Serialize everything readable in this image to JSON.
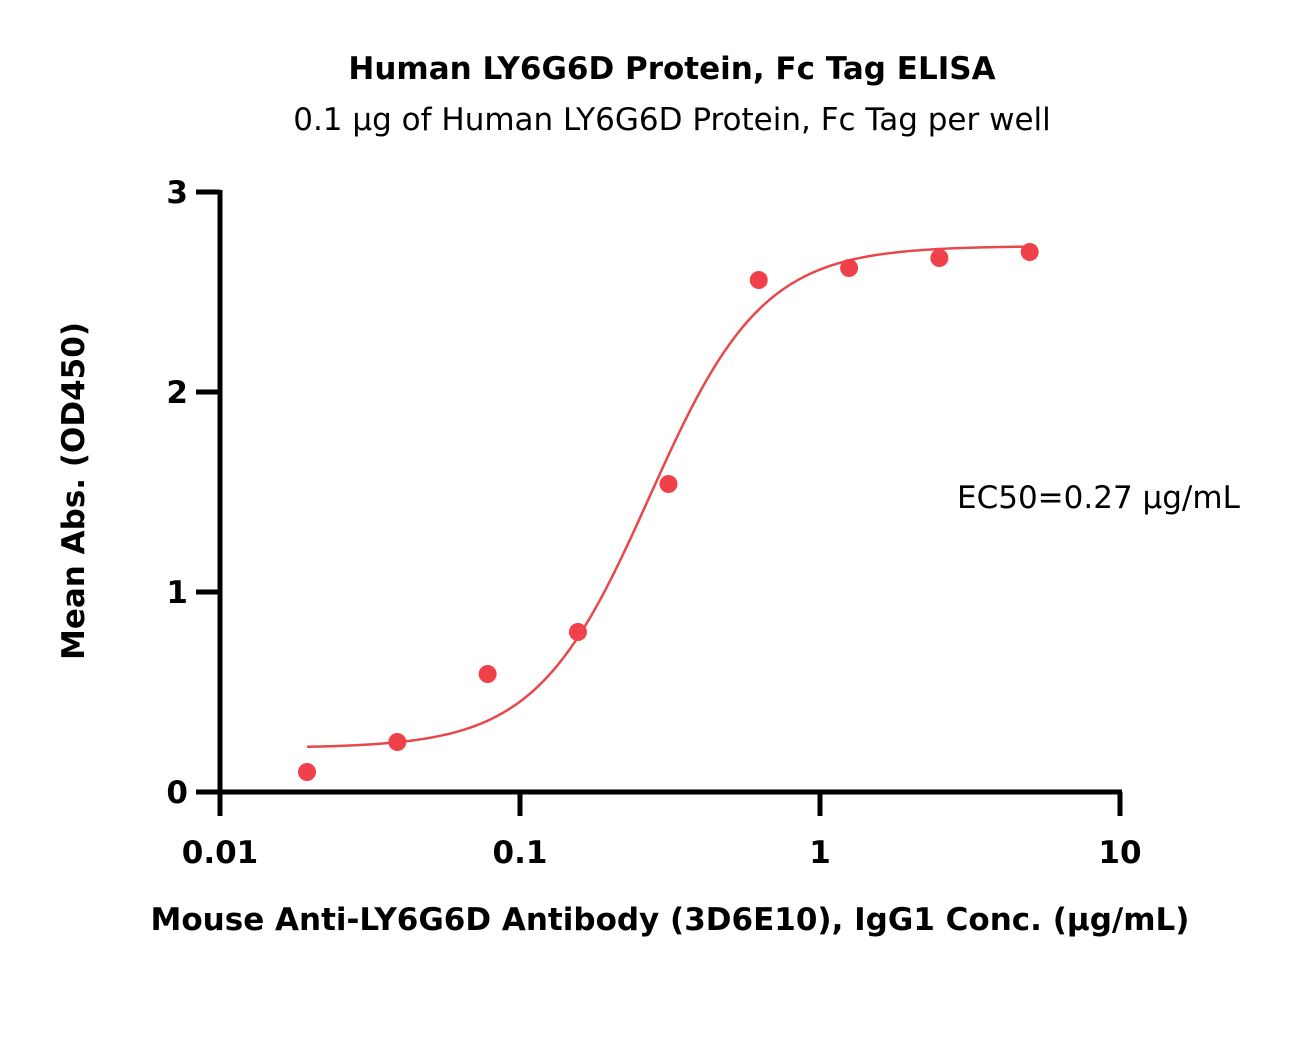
{
  "chart_data": {
    "type": "scatter",
    "title": "Human LY6G6D Protein, Fc Tag ELISA",
    "subtitle": "0.1 µg of Human LY6G6D Protein, Fc Tag per well",
    "xlabel": "Mouse Anti-LY6G6D Antibody (3D6E10), IgG1 Conc. (µg/mL)",
    "ylabel": "Mean Abs. (OD450)",
    "xscale": "log",
    "xlim": [
      0.01,
      10
    ],
    "ylim": [
      0,
      3
    ],
    "x_ticks": [
      {
        "value": 0.01,
        "label": "0.01"
      },
      {
        "value": 0.1,
        "label": "0.1"
      },
      {
        "value": 1,
        "label": "1"
      },
      {
        "value": 10,
        "label": "10"
      }
    ],
    "y_ticks": [
      {
        "value": 0,
        "label": "0"
      },
      {
        "value": 1,
        "label": "1"
      },
      {
        "value": 2,
        "label": "2"
      },
      {
        "value": 3,
        "label": "3"
      }
    ],
    "series": [
      {
        "x": [
          0.0195,
          0.039,
          0.078,
          0.156,
          0.3125,
          0.625,
          1.25,
          2.5,
          5
        ],
        "y": [
          0.1,
          0.25,
          0.59,
          0.8,
          1.54,
          2.56,
          2.62,
          2.67,
          2.7
        ],
        "color": "#f0414a",
        "fit": {
          "model": "4PL",
          "bottom": 0.22,
          "top": 2.73,
          "ec50": 0.27,
          "hill": 2.3,
          "color": "#e8474c"
        }
      }
    ],
    "annotation": "EC50=0.27 µg/mL",
    "grid": false,
    "legend": "none"
  }
}
